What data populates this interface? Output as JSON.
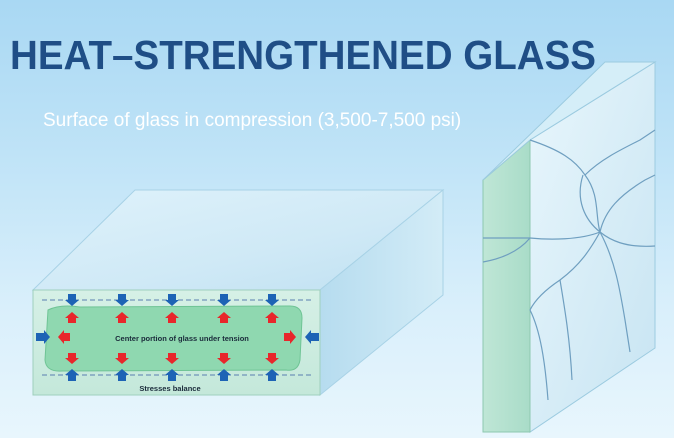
{
  "title": "HEAT–STRENGTHENED GLASS",
  "subtitle": "Surface of glass in compression (3,500-7,500 psi)",
  "labels": {
    "center": "Center portion of glass under tension",
    "balance": "Stresses balance"
  },
  "colors": {
    "title": "#1f4e86",
    "compression_arrow": "#1d63b5",
    "tension_arrow": "#e8262b",
    "tension_zone": "#8fd8b0"
  }
}
